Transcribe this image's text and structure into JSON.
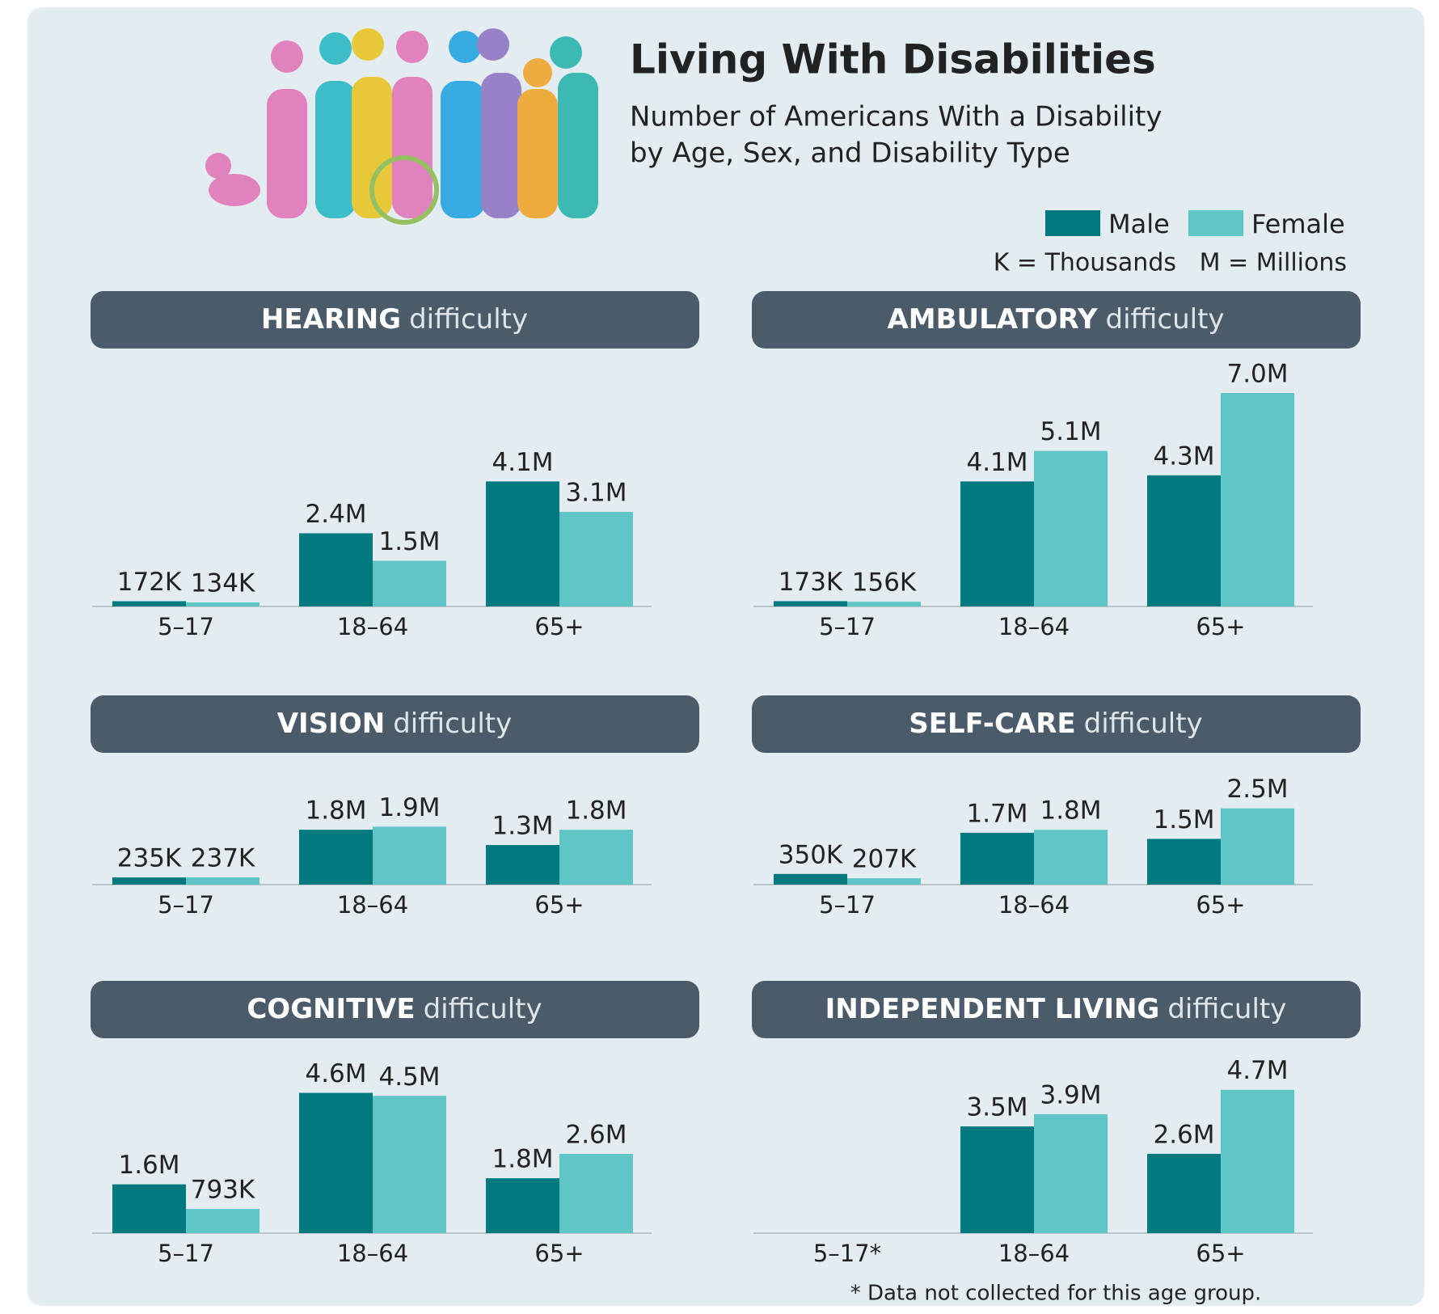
{
  "header": {
    "title": "Living With Disabilities",
    "subtitle": [
      "Number of Americans With a Disability",
      "by Age, Sex, and Disability Type"
    ],
    "units_note": [
      "K = Thousands",
      "M = Millions"
    ]
  },
  "chart_data": [
    {
      "type": "bar",
      "title": "HEARING",
      "title_suffix": "difficulty",
      "categories": [
        "5–17",
        "18–64",
        "65+"
      ],
      "series": [
        {
          "name": "Male",
          "color": "#007a7e",
          "values": [
            172000,
            2400000,
            4100000
          ],
          "value_labels": [
            "172K",
            "2.4M",
            "4.1M"
          ]
        },
        {
          "name": "Female",
          "color": "#5fc5c6",
          "values": [
            134000,
            1500000,
            3100000
          ],
          "value_labels": [
            "134K",
            "1.5M",
            "3.1M"
          ]
        }
      ]
    },
    {
      "type": "bar",
      "title": "AMBULATORY",
      "title_suffix": "difficulty",
      "categories": [
        "5–17",
        "18–64",
        "65+"
      ],
      "series": [
        {
          "name": "Male",
          "color": "#007a7e",
          "values": [
            173000,
            4100000,
            4300000
          ],
          "value_labels": [
            "173K",
            "4.1M",
            "4.3M"
          ]
        },
        {
          "name": "Female",
          "color": "#5fc5c6",
          "values": [
            156000,
            5100000,
            7000000
          ],
          "value_labels": [
            "156K",
            "5.1M",
            "7.0M"
          ]
        }
      ]
    },
    {
      "type": "bar",
      "title": "VISION",
      "title_suffix": "difficulty",
      "categories": [
        "5–17",
        "18–64",
        "65+"
      ],
      "series": [
        {
          "name": "Male",
          "color": "#007a7e",
          "values": [
            235000,
            1800000,
            1300000
          ],
          "value_labels": [
            "235K",
            "1.8M",
            "1.3M"
          ]
        },
        {
          "name": "Female",
          "color": "#5fc5c6",
          "values": [
            237000,
            1900000,
            1800000
          ],
          "value_labels": [
            "237K",
            "1.9M",
            "1.8M"
          ]
        }
      ]
    },
    {
      "type": "bar",
      "title": "SELF-CARE",
      "title_suffix": "difficulty",
      "categories": [
        "5–17",
        "18–64",
        "65+"
      ],
      "series": [
        {
          "name": "Male",
          "color": "#007a7e",
          "values": [
            350000,
            1700000,
            1500000
          ],
          "value_labels": [
            "350K",
            "1.7M",
            "1.5M"
          ]
        },
        {
          "name": "Female",
          "color": "#5fc5c6",
          "values": [
            207000,
            1800000,
            2500000
          ],
          "value_labels": [
            "207K",
            "1.8M",
            "2.5M"
          ]
        }
      ]
    },
    {
      "type": "bar",
      "title": "COGNITIVE",
      "title_suffix": "difficulty",
      "categories": [
        "5–17",
        "18–64",
        "65+"
      ],
      "series": [
        {
          "name": "Male",
          "color": "#007a7e",
          "values": [
            1600000,
            4600000,
            1800000
          ],
          "value_labels": [
            "1.6M",
            "4.6M",
            "1.8M"
          ]
        },
        {
          "name": "Female",
          "color": "#5fc5c6",
          "values": [
            793000,
            4500000,
            2600000
          ],
          "value_labels": [
            "793K",
            "4.5M",
            "2.6M"
          ]
        }
      ]
    },
    {
      "type": "bar",
      "title": "INDEPENDENT LIVING",
      "title_suffix": "difficulty",
      "categories": [
        "5–17*",
        "18–64",
        "65+"
      ],
      "series": [
        {
          "name": "Male",
          "color": "#007a7e",
          "values": [
            null,
            3500000,
            2600000
          ],
          "value_labels": [
            null,
            "3.5M",
            "2.6M"
          ]
        },
        {
          "name": "Female",
          "color": "#5fc5c6",
          "values": [
            null,
            3900000,
            4700000
          ],
          "value_labels": [
            null,
            "3.9M",
            "4.7M"
          ]
        }
      ],
      "note": "* Data not collected for this age group."
    }
  ]
}
